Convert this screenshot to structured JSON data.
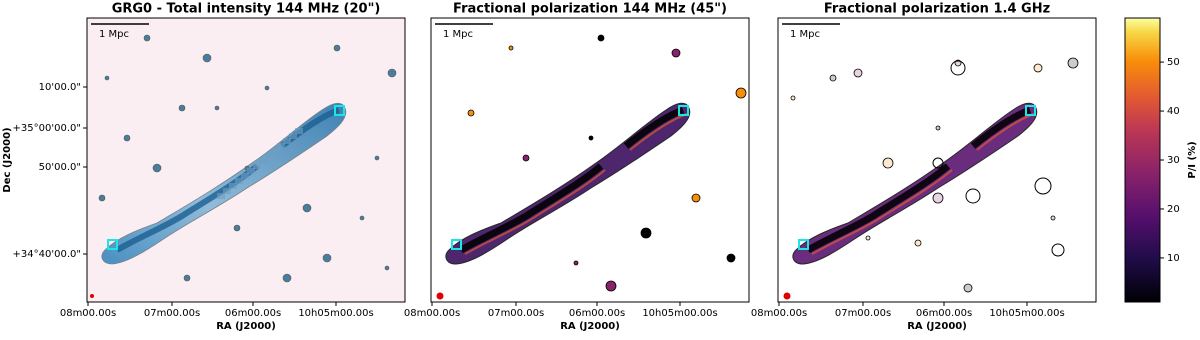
{
  "panels": [
    {
      "title": "GRG0 - Total intensity 144 MHz (20\")",
      "scalebar": "1 Mpc",
      "xlabel": "RA (J2000)",
      "xticks": [
        "08m00.00s",
        "07m00.00s",
        "06m00.00s",
        "10h05m00.00s"
      ],
      "ylabel": "Dec (J2000)",
      "yticks": [
        "10'00.0\"",
        "+35°00'00.0\"",
        "50'00.0\"",
        "+34°40'00.0\""
      ]
    },
    {
      "title": "Fractional polarization 144 MHz (45\")",
      "scalebar": "1 Mpc",
      "xlabel": "RA (J2000)",
      "xticks": [
        "08m00.00s",
        "07m00.00s",
        "06m00.00s",
        "10h05m00.00s"
      ]
    },
    {
      "title": "Fractional polarization 1.4 GHz",
      "scalebar": "1 Mpc",
      "xlabel": "RA (J2000)",
      "xticks": [
        "08m00.00s",
        "07m00.00s",
        "06m00.00s",
        "10h05m00.00s"
      ]
    }
  ],
  "colorbar": {
    "label": "P/I (%)",
    "lim": [
      1,
      59
    ],
    "ticks": [
      10,
      20,
      30,
      40,
      50
    ]
  }
}
